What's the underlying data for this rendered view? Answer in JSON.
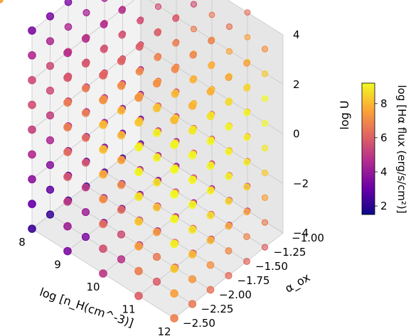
{
  "chart_data": {
    "type": "scatter3d",
    "axes": {
      "x": {
        "label": "log [n_H(cm^-3)]",
        "ticks": [
          "8",
          "9",
          "10",
          "11",
          "12"
        ],
        "range": [
          8,
          12
        ]
      },
      "y": {
        "label": "α_ox",
        "ticks": [
          "−1.00",
          "−1.25",
          "−1.50",
          "−1.75",
          "−2.00",
          "−2.25",
          "−2.50"
        ],
        "range": [
          -2.5,
          -1.0
        ]
      },
      "z": {
        "label": "log U",
        "ticks": [
          "4",
          "2",
          "0",
          "−2",
          "−4"
        ],
        "range": [
          -4,
          4
        ]
      }
    },
    "colorbar": {
      "label": "log [Hα flux (erg/s/cm²)]",
      "ticks": [
        "8",
        "6",
        "4",
        "2"
      ],
      "range": [
        1.5,
        9.2
      ],
      "colormap": "plasma",
      "colors": [
        "#0d0887",
        "#6a00a8",
        "#b12a90",
        "#e16462",
        "#fca636",
        "#f0f921"
      ]
    },
    "grid": true,
    "series": [
      {
        "marker": "circle",
        "x": [
          8,
          8,
          8,
          8,
          8,
          8,
          8,
          8,
          8,
          9,
          9,
          9,
          9,
          9,
          9,
          9,
          9,
          9,
          10,
          10,
          10,
          10,
          10,
          10,
          10,
          10,
          10,
          11,
          11,
          11,
          11,
          11,
          11,
          11,
          11,
          11,
          12,
          12,
          12,
          12,
          12,
          12,
          12,
          12,
          12,
          8,
          8,
          8,
          8,
          8,
          8,
          8,
          8,
          8,
          9,
          9,
          9,
          9,
          9,
          9,
          9,
          9,
          9,
          10,
          10,
          10,
          10,
          10,
          10,
          10,
          10,
          10,
          11,
          11,
          11,
          11,
          11,
          11,
          11,
          11,
          11,
          12,
          12,
          12,
          12,
          12,
          12,
          12,
          12,
          12,
          8,
          8,
          8,
          8,
          8,
          8,
          8,
          8,
          8,
          9,
          9,
          9,
          9,
          9,
          9,
          9,
          9,
          9,
          10,
          10,
          10,
          10,
          10,
          10,
          10,
          10,
          10,
          11,
          11,
          11,
          11,
          11,
          11,
          11,
          11,
          11,
          12,
          12,
          12,
          12,
          12,
          12,
          12,
          12,
          12,
          8,
          8,
          8,
          8,
          8,
          8,
          8,
          8,
          8,
          9,
          9,
          9,
          9,
          9,
          9,
          9,
          9,
          9,
          10,
          10,
          10,
          10,
          10,
          10,
          10,
          10,
          10,
          11,
          11,
          11,
          11,
          11,
          11,
          11,
          11,
          11,
          12,
          12,
          12,
          12,
          12,
          12,
          12,
          12,
          12,
          8,
          8,
          8,
          8,
          8,
          8,
          8,
          8,
          8,
          9,
          9,
          9,
          9,
          9,
          9,
          9,
          9,
          9,
          10,
          10,
          10,
          10,
          10,
          10,
          10,
          10,
          10,
          11,
          11,
          11,
          11,
          11,
          11,
          11,
          11,
          11,
          12,
          12,
          12,
          12,
          12,
          12,
          12,
          12,
          12,
          8,
          8,
          8,
          8,
          8,
          8,
          8,
          8,
          8,
          9,
          9,
          9,
          9,
          9,
          9,
          9,
          9,
          9,
          10,
          10,
          10,
          10,
          10,
          10,
          10,
          10,
          10,
          11,
          11,
          11,
          11,
          11,
          11,
          11,
          11,
          11,
          12,
          12,
          12,
          12,
          12,
          12,
          12,
          12,
          12,
          8,
          8,
          8,
          8,
          8,
          8,
          8,
          8,
          8,
          9,
          9,
          9,
          9,
          9,
          9,
          9,
          9,
          9,
          10,
          10,
          10,
          10,
          10,
          10,
          10,
          10,
          10,
          11,
          11,
          11,
          11,
          11,
          11,
          11,
          11,
          11,
          12,
          12,
          12,
          12,
          12,
          12,
          12,
          12,
          12
        ],
        "y": [
          -2.5,
          -2.5,
          -2.5,
          -2.5,
          -2.5,
          -2.5,
          -2.5,
          -2.5,
          -2.5,
          -2.5,
          -2.5,
          -2.5,
          -2.5,
          -2.5,
          -2.5,
          -2.5,
          -2.5,
          -2.5,
          -2.5,
          -2.5,
          -2.5,
          -2.5,
          -2.5,
          -2.5,
          -2.5,
          -2.5,
          -2.5,
          -2.5,
          -2.5,
          -2.5,
          -2.5,
          -2.5,
          -2.5,
          -2.5,
          -2.5,
          -2.5,
          -2.5,
          -2.5,
          -2.5,
          -2.5,
          -2.5,
          -2.5,
          -2.5,
          -2.5,
          -2.5,
          -2.25,
          -2.25,
          -2.25,
          -2.25,
          -2.25,
          -2.25,
          -2.25,
          -2.25,
          -2.25,
          -2.25,
          -2.25,
          -2.25,
          -2.25,
          -2.25,
          -2.25,
          -2.25,
          -2.25,
          -2.25,
          -2.25,
          -2.25,
          -2.25,
          -2.25,
          -2.25,
          -2.25,
          -2.25,
          -2.25,
          -2.25,
          -2.25,
          -2.25,
          -2.25,
          -2.25,
          -2.25,
          -2.25,
          -2.25,
          -2.25,
          -2.25,
          -2.25,
          -2.25,
          -2.25,
          -2.25,
          -2.25,
          -2.25,
          -2.25,
          -2.25,
          -2.25,
          -2.0,
          -2.0,
          -2.0,
          -2.0,
          -2.0,
          -2.0,
          -2.0,
          -2.0,
          -2.0,
          -2.0,
          -2.0,
          -2.0,
          -2.0,
          -2.0,
          -2.0,
          -2.0,
          -2.0,
          -2.0,
          -2.0,
          -2.0,
          -2.0,
          -2.0,
          -2.0,
          -2.0,
          -2.0,
          -2.0,
          -2.0,
          -2.0,
          -2.0,
          -2.0,
          -2.0,
          -2.0,
          -2.0,
          -2.0,
          -2.0,
          -2.0,
          -2.0,
          -2.0,
          -2.0,
          -2.0,
          -2.0,
          -2.0,
          -2.0,
          -2.0,
          -2.0,
          -1.75,
          -1.75,
          -1.75,
          -1.75,
          -1.75,
          -1.75,
          -1.75,
          -1.75,
          -1.75,
          -1.75,
          -1.75,
          -1.75,
          -1.75,
          -1.75,
          -1.75,
          -1.75,
          -1.75,
          -1.75,
          -1.75,
          -1.75,
          -1.75,
          -1.75,
          -1.75,
          -1.75,
          -1.75,
          -1.75,
          -1.75,
          -1.75,
          -1.75,
          -1.75,
          -1.75,
          -1.75,
          -1.75,
          -1.75,
          -1.75,
          -1.75,
          -1.75,
          -1.75,
          -1.75,
          -1.75,
          -1.75,
          -1.75,
          -1.75,
          -1.75,
          -1.75,
          -1.5,
          -1.5,
          -1.5,
          -1.5,
          -1.5,
          -1.5,
          -1.5,
          -1.5,
          -1.5,
          -1.5,
          -1.5,
          -1.5,
          -1.5,
          -1.5,
          -1.5,
          -1.5,
          -1.5,
          -1.5,
          -1.5,
          -1.5,
          -1.5,
          -1.5,
          -1.5,
          -1.5,
          -1.5,
          -1.5,
          -1.5,
          -1.5,
          -1.5,
          -1.5,
          -1.5,
          -1.5,
          -1.5,
          -1.5,
          -1.5,
          -1.5,
          -1.5,
          -1.5,
          -1.5,
          -1.5,
          -1.5,
          -1.5,
          -1.5,
          -1.5,
          -1.5,
          -1.25,
          -1.25,
          -1.25,
          -1.25,
          -1.25,
          -1.25,
          -1.25,
          -1.25,
          -1.25,
          -1.25,
          -1.25,
          -1.25,
          -1.25,
          -1.25,
          -1.25,
          -1.25,
          -1.25,
          -1.25,
          -1.25,
          -1.25,
          -1.25,
          -1.25,
          -1.25,
          -1.25,
          -1.25,
          -1.25,
          -1.25,
          -1.25,
          -1.25,
          -1.25,
          -1.25,
          -1.25,
          -1.25,
          -1.25,
          -1.25,
          -1.25,
          -1.25,
          -1.25,
          -1.25,
          -1.25,
          -1.25,
          -1.25,
          -1.25,
          -1.25,
          -1.25,
          -1.0,
          -1.0,
          -1.0,
          -1.0,
          -1.0,
          -1.0,
          -1.0,
          -1.0,
          -1.0,
          -1.0,
          -1.0,
          -1.0,
          -1.0,
          -1.0,
          -1.0,
          -1.0,
          -1.0,
          -1.0,
          -1.0,
          -1.0,
          -1.0,
          -1.0,
          -1.0,
          -1.0,
          -1.0,
          -1.0,
          -1.0,
          -1.0,
          -1.0,
          -1.0,
          -1.0,
          -1.0,
          -1.0,
          -1.0,
          -1.0,
          -1.0,
          -1.0,
          -1.0,
          -1.0,
          -1.0,
          -1.0,
          -1.0,
          -1.0,
          -1.0,
          -1.0
        ],
        "z": [
          -4,
          -3,
          -2,
          -1,
          0,
          1,
          2,
          3,
          4,
          -4,
          -3,
          -2,
          -1,
          0,
          1,
          2,
          3,
          4,
          -4,
          -3,
          -2,
          -1,
          0,
          1,
          2,
          3,
          4,
          -4,
          -3,
          -2,
          -1,
          0,
          1,
          2,
          3,
          4,
          -4,
          -3,
          -2,
          -1,
          0,
          1,
          2,
          3,
          4,
          -4,
          -3,
          -2,
          -1,
          0,
          1,
          2,
          3,
          4,
          -4,
          -3,
          -2,
          -1,
          0,
          1,
          2,
          3,
          4,
          -4,
          -3,
          -2,
          -1,
          0,
          1,
          2,
          3,
          4,
          -4,
          -3,
          -2,
          -1,
          0,
          1,
          2,
          3,
          4,
          -4,
          -3,
          -2,
          -1,
          0,
          1,
          2,
          3,
          4,
          -4,
          -3,
          -2,
          -1,
          0,
          1,
          2,
          3,
          4,
          -4,
          -3,
          -2,
          -1,
          0,
          1,
          2,
          3,
          4,
          -4,
          -3,
          -2,
          -1,
          0,
          1,
          2,
          3,
          4,
          -4,
          -3,
          -2,
          -1,
          0,
          1,
          2,
          3,
          4,
          -4,
          -3,
          -2,
          -1,
          0,
          1,
          2,
          3,
          4,
          -4,
          -3,
          -2,
          -1,
          0,
          1,
          2,
          3,
          4,
          -4,
          -3,
          -2,
          -1,
          0,
          1,
          2,
          3,
          4,
          -4,
          -3,
          -2,
          -1,
          0,
          1,
          2,
          3,
          4,
          -4,
          -3,
          -2,
          -1,
          0,
          1,
          2,
          3,
          4,
          -4,
          -3,
          -2,
          -1,
          0,
          1,
          2,
          3,
          4,
          -4,
          -3,
          -2,
          -1,
          0,
          1,
          2,
          3,
          4,
          -4,
          -3,
          -2,
          -1,
          0,
          1,
          2,
          3,
          4,
          -4,
          -3,
          -2,
          -1,
          0,
          1,
          2,
          3,
          4,
          -4,
          -3,
          -2,
          -1,
          0,
          1,
          2,
          3,
          4,
          -4,
          -3,
          -2,
          -1,
          0,
          1,
          2,
          3,
          4,
          -4,
          -3,
          -2,
          -1,
          0,
          1,
          2,
          3,
          4,
          -4,
          -3,
          -2,
          -1,
          0,
          1,
          2,
          3,
          4,
          -4,
          -3,
          -2,
          -1,
          0,
          1,
          2,
          3,
          4,
          -4,
          -3,
          -2,
          -1,
          0,
          1,
          2,
          3,
          4,
          -4,
          -3,
          -2,
          -1,
          0,
          1,
          2,
          3,
          4,
          -4,
          -3,
          -2,
          -1,
          0,
          1,
          2,
          3,
          4,
          -4,
          -3,
          -2,
          -1,
          0,
          1,
          2,
          3,
          4,
          -4,
          -3,
          -2,
          -1,
          0,
          1,
          2,
          3,
          4,
          -4,
          -3,
          -2,
          -1,
          0,
          1,
          2,
          3,
          4
        ],
        "c": [
          2.3,
          3.0,
          3.8,
          4.6,
          5.2,
          5.6,
          5.5,
          4.6,
          3.5,
          3.5,
          4.2,
          5.0,
          5.8,
          6.4,
          6.8,
          6.7,
          5.8,
          4.7,
          4.9,
          5.6,
          6.4,
          7.2,
          7.8,
          8.2,
          8.1,
          7.2,
          6.1,
          6.0,
          6.7,
          7.5,
          8.3,
          8.9,
          9.3,
          9.2,
          8.3,
          7.2,
          6.8,
          7.5,
          8.3,
          9.1,
          9.2,
          9.2,
          9.2,
          9.1,
          8.0,
          2.2,
          2.9,
          3.7,
          4.5,
          5.1,
          5.5,
          5.4,
          4.5,
          3.4,
          3.5,
          4.2,
          5.0,
          5.8,
          6.4,
          6.8,
          6.7,
          5.8,
          4.7,
          4.8,
          5.5,
          6.3,
          7.1,
          7.7,
          8.1,
          8.0,
          7.1,
          6.0,
          5.9,
          6.6,
          7.4,
          8.2,
          8.8,
          9.2,
          9.1,
          8.2,
          7.1,
          6.6,
          7.3,
          8.1,
          8.9,
          9.2,
          9.2,
          9.2,
          8.9,
          7.8,
          2.2,
          2.9,
          3.7,
          4.5,
          5.1,
          5.5,
          5.4,
          4.5,
          3.4,
          3.4,
          4.1,
          4.9,
          5.7,
          6.3,
          6.7,
          6.6,
          5.7,
          4.6,
          4.7,
          5.4,
          6.2,
          7.0,
          7.6,
          8.0,
          7.9,
          7.0,
          5.9,
          5.7,
          6.4,
          7.2,
          8.0,
          8.6,
          9.0,
          8.9,
          8.0,
          6.9,
          6.5,
          7.2,
          8.0,
          8.8,
          9.2,
          9.2,
          9.2,
          8.8,
          7.7,
          2.1,
          2.8,
          3.6,
          4.4,
          5.0,
          5.4,
          5.3,
          4.4,
          3.3,
          3.4,
          4.1,
          4.9,
          5.7,
          6.3,
          6.7,
          6.6,
          5.7,
          4.6,
          4.6,
          5.3,
          6.1,
          6.9,
          7.5,
          7.9,
          7.8,
          6.9,
          5.8,
          5.6,
          6.3,
          7.1,
          7.9,
          8.5,
          8.9,
          8.8,
          7.9,
          6.8,
          6.3,
          7.0,
          7.8,
          8.6,
          9.2,
          9.2,
          9.2,
          8.6,
          7.5,
          2.1,
          2.8,
          3.6,
          4.4,
          5.0,
          5.4,
          5.3,
          4.4,
          3.3,
          3.3,
          4.0,
          4.8,
          5.6,
          6.2,
          6.6,
          6.5,
          5.6,
          4.5,
          4.5,
          5.2,
          6.0,
          6.8,
          7.4,
          7.8,
          7.7,
          6.8,
          5.7,
          5.5,
          6.2,
          7.0,
          7.8,
          8.4,
          8.8,
          8.7,
          7.8,
          6.7,
          6.2,
          6.9,
          7.7,
          8.5,
          9.1,
          9.2,
          9.2,
          8.5,
          7.4,
          2.0,
          2.7,
          3.5,
          4.3,
          4.9,
          5.3,
          5.2,
          4.3,
          3.2,
          3.3,
          4.0,
          4.8,
          5.6,
          6.2,
          6.6,
          6.5,
          5.6,
          4.5,
          4.4,
          5.1,
          5.9,
          6.7,
          7.3,
          7.7,
          7.6,
          6.7,
          5.6,
          5.3,
          6.0,
          6.8,
          7.6,
          8.2,
          8.6,
          8.5,
          7.6,
          6.5,
          6.0,
          6.7,
          7.5,
          8.3,
          8.9,
          9.2,
          9.2,
          8.3,
          7.2,
          2.0,
          2.7,
          3.5,
          4.3,
          4.9,
          5.3,
          5.2,
          4.3,
          3.2,
          3.2,
          3.9,
          4.7,
          5.5,
          6.1,
          6.5,
          6.4,
          5.5,
          4.4,
          4.3,
          5.0,
          5.8,
          6.6,
          7.2,
          7.6,
          7.5,
          6.6,
          5.5,
          5.2,
          5.9,
          6.7,
          7.5,
          8.1,
          8.5,
          8.4,
          7.5,
          6.4,
          5.9,
          6.6,
          7.4,
          8.2,
          8.8,
          9.2,
          9.2,
          8.2,
          7.1
        ]
      }
    ]
  }
}
